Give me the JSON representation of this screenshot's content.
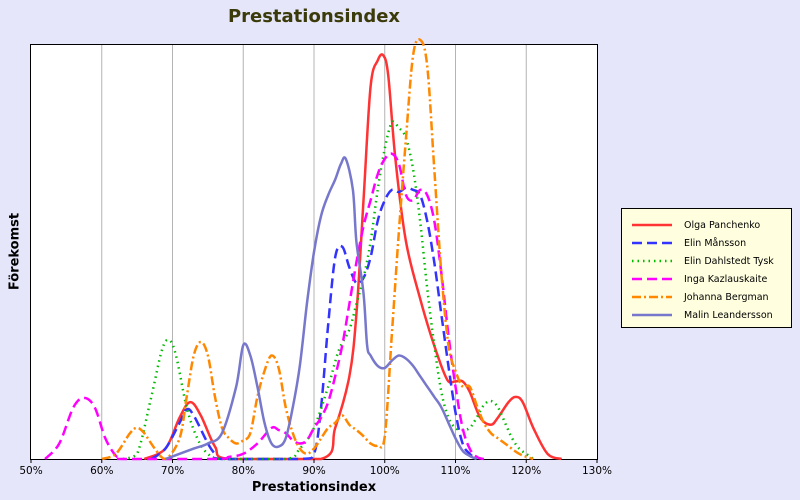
{
  "chart_data": {
    "type": "line",
    "title": "Prestationsindex",
    "xlabel": "Prestationsindex",
    "ylabel": "Förekomst",
    "xlim": [
      50,
      130
    ],
    "x_ticks": [
      "50%",
      "60%",
      "70%",
      "80%",
      "90%",
      "100%",
      "110%",
      "120%",
      "130%"
    ],
    "grid": "vertical",
    "legend_position": "right",
    "series": [
      {
        "name": "Olga Panchenko",
        "color": "#ff3333",
        "dash": "solid",
        "points": [
          [
            66,
            0
          ],
          [
            69,
            10
          ],
          [
            71,
            40
          ],
          [
            72.5,
            55
          ],
          [
            74,
            42
          ],
          [
            76,
            12
          ],
          [
            78,
            0
          ],
          [
            91,
            0
          ],
          [
            93,
            30
          ],
          [
            95,
            80
          ],
          [
            96,
            140
          ],
          [
            97,
            250
          ],
          [
            98,
            360
          ],
          [
            99,
            385
          ],
          [
            99.8,
            390
          ],
          [
            100.5,
            370
          ],
          [
            101.5,
            290
          ],
          [
            103,
            210
          ],
          [
            105,
            155
          ],
          [
            106.5,
            120
          ],
          [
            108,
            90
          ],
          [
            109,
            75
          ],
          [
            110,
            75
          ],
          [
            111,
            75
          ],
          [
            112,
            65
          ],
          [
            113.5,
            40
          ],
          [
            115,
            33
          ],
          [
            116,
            40
          ],
          [
            117.5,
            55
          ],
          [
            118.5,
            60
          ],
          [
            119.5,
            55
          ],
          [
            121,
            30
          ],
          [
            123,
            5
          ],
          [
            125,
            0
          ]
        ]
      },
      {
        "name": "Elin Månsson",
        "color": "#3333ff",
        "dash": "long",
        "points": [
          [
            67,
            0
          ],
          [
            69,
            10
          ],
          [
            71,
            35
          ],
          [
            72,
            48
          ],
          [
            73,
            42
          ],
          [
            75,
            15
          ],
          [
            76,
            5
          ],
          [
            77,
            0
          ],
          [
            88,
            0
          ],
          [
            90,
            5
          ],
          [
            91,
            50
          ],
          [
            92,
            130
          ],
          [
            93,
            195
          ],
          [
            94,
            205
          ],
          [
            95,
            185
          ],
          [
            96,
            170
          ],
          [
            97,
            175
          ],
          [
            98,
            195
          ],
          [
            99,
            230
          ],
          [
            100,
            250
          ],
          [
            101,
            260
          ],
          [
            102,
            258
          ],
          [
            103,
            262
          ],
          [
            104,
            260
          ],
          [
            105,
            255
          ],
          [
            106,
            230
          ],
          [
            107,
            190
          ],
          [
            108,
            140
          ],
          [
            109,
            90
          ],
          [
            110,
            45
          ],
          [
            111,
            15
          ],
          [
            112,
            5
          ],
          [
            113,
            0
          ]
        ]
      },
      {
        "name": "Elin Dahlstedt Tysk",
        "color": "#00bb00",
        "dash": "dotted",
        "points": [
          [
            63,
            0
          ],
          [
            65,
            5
          ],
          [
            67,
            60
          ],
          [
            68.5,
            105
          ],
          [
            69.5,
            115
          ],
          [
            70.5,
            100
          ],
          [
            72,
            50
          ],
          [
            73.5,
            20
          ],
          [
            75,
            5
          ],
          [
            77,
            0
          ],
          [
            86,
            0
          ],
          [
            88,
            10
          ],
          [
            90,
            30
          ],
          [
            92,
            70
          ],
          [
            93.5,
            105
          ],
          [
            95,
            125
          ],
          [
            96,
            150
          ],
          [
            97,
            175
          ],
          [
            98,
            210
          ],
          [
            99,
            260
          ],
          [
            100,
            300
          ],
          [
            101,
            325
          ],
          [
            102,
            320
          ],
          [
            103,
            310
          ],
          [
            104,
            280
          ],
          [
            105,
            230
          ],
          [
            106,
            165
          ],
          [
            107,
            110
          ],
          [
            108,
            65
          ],
          [
            109,
            40
          ],
          [
            110,
            30
          ],
          [
            111,
            28
          ],
          [
            112,
            30
          ],
          [
            113,
            40
          ],
          [
            114,
            52
          ],
          [
            115,
            56
          ],
          [
            116,
            50
          ],
          [
            117,
            35
          ],
          [
            118,
            20
          ],
          [
            119,
            10
          ],
          [
            120,
            5
          ],
          [
            121,
            0
          ]
        ]
      },
      {
        "name": "Inga Kazlauskaite",
        "color": "#ff00ff",
        "dash": "long",
        "points": [
          [
            52,
            0
          ],
          [
            54,
            15
          ],
          [
            56,
            50
          ],
          [
            57.5,
            59
          ],
          [
            59,
            50
          ],
          [
            60.5,
            20
          ],
          [
            62,
            3
          ],
          [
            63,
            0
          ],
          [
            76,
            0
          ],
          [
            78,
            2
          ],
          [
            80,
            5
          ],
          [
            82,
            15
          ],
          [
            84,
            30
          ],
          [
            85,
            28
          ],
          [
            86,
            25
          ],
          [
            87,
            18
          ],
          [
            88,
            15
          ],
          [
            89,
            18
          ],
          [
            90,
            30
          ],
          [
            91,
            40
          ],
          [
            92,
            55
          ],
          [
            93,
            80
          ],
          [
            94,
            110
          ],
          [
            95,
            150
          ],
          [
            96,
            190
          ],
          [
            97,
            225
          ],
          [
            98,
            250
          ],
          [
            99,
            275
          ],
          [
            100,
            290
          ],
          [
            101,
            295
          ],
          [
            102,
            285
          ],
          [
            103,
            255
          ],
          [
            104,
            250
          ],
          [
            105,
            260
          ],
          [
            106,
            255
          ],
          [
            107,
            230
          ],
          [
            108,
            180
          ],
          [
            109,
            120
          ],
          [
            110,
            70
          ],
          [
            111,
            30
          ],
          [
            112,
            10
          ],
          [
            113,
            2
          ],
          [
            114,
            0
          ]
        ]
      },
      {
        "name": "Johanna Bergman",
        "color": "#ff8800",
        "dash": "dashdot",
        "points": [
          [
            60,
            0
          ],
          [
            62,
            5
          ],
          [
            64,
            25
          ],
          [
            65,
            30
          ],
          [
            66,
            25
          ],
          [
            67.5,
            10
          ],
          [
            69,
            0
          ],
          [
            71,
            20
          ],
          [
            72,
            60
          ],
          [
            73,
            100
          ],
          [
            74,
            113
          ],
          [
            75,
            100
          ],
          [
            76,
            60
          ],
          [
            77,
            30
          ],
          [
            78,
            20
          ],
          [
            79,
            15
          ],
          [
            80,
            18
          ],
          [
            81,
            25
          ],
          [
            82,
            60
          ],
          [
            83,
            85
          ],
          [
            84,
            100
          ],
          [
            85,
            88
          ],
          [
            86,
            50
          ],
          [
            87,
            25
          ],
          [
            88,
            10
          ],
          [
            89,
            5
          ],
          [
            90,
            10
          ],
          [
            91,
            20
          ],
          [
            92,
            30
          ],
          [
            93,
            35
          ],
          [
            94,
            42
          ],
          [
            95,
            33
          ],
          [
            96,
            28
          ],
          [
            97,
            22
          ],
          [
            98,
            15
          ],
          [
            99,
            13
          ],
          [
            100,
            22
          ],
          [
            101,
            120
          ],
          [
            102,
            220
          ],
          [
            103,
            310
          ],
          [
            104,
            390
          ],
          [
            105,
            405
          ],
          [
            106,
            380
          ],
          [
            107,
            280
          ],
          [
            108,
            180
          ],
          [
            109,
            110
          ],
          [
            110,
            85
          ],
          [
            111,
            70
          ],
          [
            112,
            70
          ],
          [
            113,
            52
          ],
          [
            114,
            35
          ],
          [
            115,
            25
          ],
          [
            116,
            20
          ],
          [
            117,
            15
          ],
          [
            119,
            5
          ],
          [
            121,
            0
          ]
        ]
      },
      {
        "name": "Malin Leandersson",
        "color": "#7777cc",
        "dash": "solid",
        "points": [
          [
            69,
            0
          ],
          [
            71,
            5
          ],
          [
            73,
            10
          ],
          [
            75,
            15
          ],
          [
            77,
            25
          ],
          [
            79,
            70
          ],
          [
            80,
            110
          ],
          [
            81,
            100
          ],
          [
            82,
            70
          ],
          [
            83,
            35
          ],
          [
            84,
            15
          ],
          [
            85,
            12
          ],
          [
            86,
            20
          ],
          [
            87,
            50
          ],
          [
            88,
            90
          ],
          [
            89,
            150
          ],
          [
            90,
            200
          ],
          [
            91,
            235
          ],
          [
            92,
            255
          ],
          [
            93,
            270
          ],
          [
            93.8,
            285
          ],
          [
            94.5,
            290
          ],
          [
            95.5,
            260
          ],
          [
            96,
            210
          ],
          [
            97,
            160
          ],
          [
            97.5,
            110
          ],
          [
            98,
            100
          ],
          [
            99,
            90
          ],
          [
            100,
            88
          ],
          [
            101,
            95
          ],
          [
            102,
            100
          ],
          [
            103,
            97
          ],
          [
            104,
            90
          ],
          [
            105,
            80
          ],
          [
            106,
            70
          ],
          [
            107,
            60
          ],
          [
            108,
            50
          ],
          [
            109,
            35
          ],
          [
            110,
            20
          ],
          [
            111,
            8
          ],
          [
            112,
            3
          ],
          [
            113,
            0
          ]
        ]
      }
    ]
  }
}
